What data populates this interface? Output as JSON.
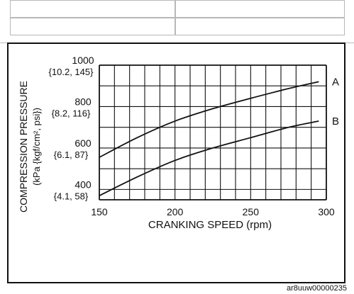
{
  "figure_id": "ar8uuw00000235",
  "chart_data": {
    "type": "line",
    "xlabel": "CRANKING SPEED (rpm)",
    "ylabel": "COMPRESSION PRESSURE (kPa {kgf/cm², psi})",
    "xlim": [
      150,
      300
    ],
    "ylim": [
      350,
      1000
    ],
    "grid": true,
    "x_ticks": [
      {
        "value": 150,
        "label": "150"
      },
      {
        "value": 200,
        "label": "200"
      },
      {
        "value": 250,
        "label": "250"
      },
      {
        "value": 300,
        "label": "300"
      }
    ],
    "y_ticks": [
      {
        "value": 1000,
        "label": "1000",
        "sublabel": "{10.2, 145}"
      },
      {
        "value": 800,
        "label": "800",
        "sublabel": "{8.2, 116}"
      },
      {
        "value": 600,
        "label": "600",
        "sublabel": "{6.1, 87}"
      },
      {
        "value": 400,
        "label": "400",
        "sublabel": "{4.1, 58}"
      }
    ],
    "series": [
      {
        "name": "A",
        "x": [
          150,
          175,
          200,
          225,
          250,
          275,
          295
        ],
        "values": [
          555,
          650,
          730,
          790,
          840,
          887,
          920
        ]
      },
      {
        "name": "B",
        "x": [
          150,
          175,
          200,
          225,
          250,
          275,
          295
        ],
        "values": [
          370,
          460,
          540,
          600,
          650,
          700,
          730
        ]
      }
    ]
  }
}
